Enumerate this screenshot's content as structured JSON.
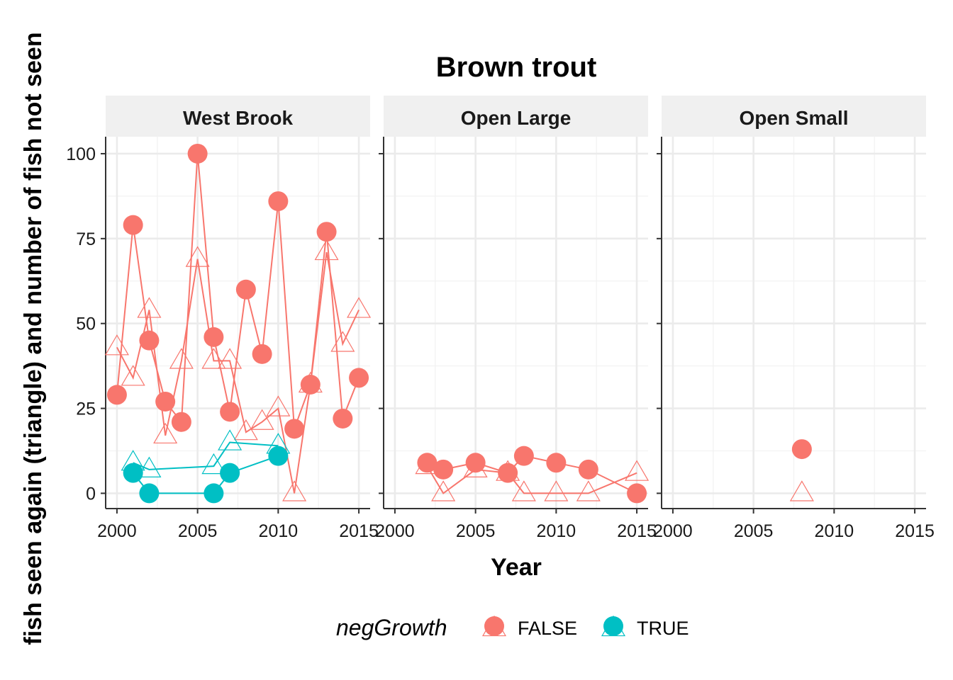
{
  "chart_data": {
    "type": "line",
    "title": "Brown trout",
    "xlabel": "Year",
    "ylabel": "fish seen again (triangle) and number of fish not seen",
    "xlim": [
      1999.3,
      2015.7
    ],
    "ylim": [
      -4.5,
      105
    ],
    "x_ticks": [
      "2000",
      "2005",
      "2010",
      "2015"
    ],
    "x_tick_values": [
      2000,
      2005,
      2010,
      2015
    ],
    "y_ticks": [
      "0",
      "25",
      "50",
      "75",
      "100"
    ],
    "y_tick_values": [
      0,
      25,
      50,
      75,
      100
    ],
    "grid": true,
    "legend": {
      "title": "negGrowth",
      "position": "bottom",
      "entries": [
        {
          "label": "FALSE",
          "color": "#F8766D"
        },
        {
          "label": "TRUE",
          "color": "#00BFC4"
        }
      ]
    },
    "marker_legend": {
      "circle": "number of fish not seen",
      "triangle": "fish seen again"
    },
    "panels": [
      {
        "name": "West Brook",
        "series": [
          {
            "group": "FALSE",
            "marker": "circle",
            "color": "#F8766D",
            "x": [
              2000,
              2001,
              2002,
              2003,
              2004,
              2005,
              2006,
              2007,
              2008,
              2009,
              2010,
              2011,
              2012,
              2013,
              2014,
              2015
            ],
            "y": [
              29,
              79,
              45,
              27,
              21,
              100,
              46,
              24,
              60,
              41,
              86,
              19,
              32,
              77,
              22,
              34
            ]
          },
          {
            "group": "FALSE",
            "marker": "triangle",
            "color": "#F8766D",
            "x": [
              2000,
              2001,
              2002,
              2003,
              2004,
              2005,
              2006,
              2007,
              2008,
              2009,
              2010,
              2011,
              2012,
              2013,
              2014,
              2015
            ],
            "y": [
              43,
              34,
              54,
              17,
              39,
              69,
              39,
              39,
              18,
              21,
              25,
              0,
              32,
              71,
              44,
              54
            ]
          },
          {
            "group": "TRUE",
            "marker": "circle",
            "color": "#00BFC4",
            "x": [
              2001,
              2002,
              2006,
              2007,
              2010
            ],
            "y": [
              6,
              0,
              0,
              6,
              11
            ]
          },
          {
            "group": "TRUE",
            "marker": "triangle",
            "color": "#00BFC4",
            "x": [
              2001,
              2002,
              2006,
              2007,
              2010
            ],
            "y": [
              9,
              7,
              8,
              15,
              14
            ]
          }
        ]
      },
      {
        "name": "Open Large",
        "series": [
          {
            "group": "FALSE",
            "marker": "circle",
            "color": "#F8766D",
            "x": [
              2002,
              2003,
              2005,
              2007,
              2008,
              2010,
              2012,
              2015
            ],
            "y": [
              9,
              7,
              9,
              6,
              11,
              9,
              7,
              0
            ]
          },
          {
            "group": "FALSE",
            "marker": "triangle",
            "color": "#F8766D",
            "x": [
              2002,
              2003,
              2005,
              2007,
              2008,
              2010,
              2012,
              2015
            ],
            "y": [
              8,
              0,
              7,
              6,
              0,
              0,
              0,
              6
            ]
          }
        ]
      },
      {
        "name": "Open Small",
        "series": [
          {
            "group": "FALSE",
            "marker": "circle",
            "color": "#F8766D",
            "x": [
              2008
            ],
            "y": [
              13
            ]
          },
          {
            "group": "FALSE",
            "marker": "triangle",
            "color": "#F8766D",
            "x": [
              2008
            ],
            "y": [
              0
            ]
          }
        ]
      }
    ]
  }
}
